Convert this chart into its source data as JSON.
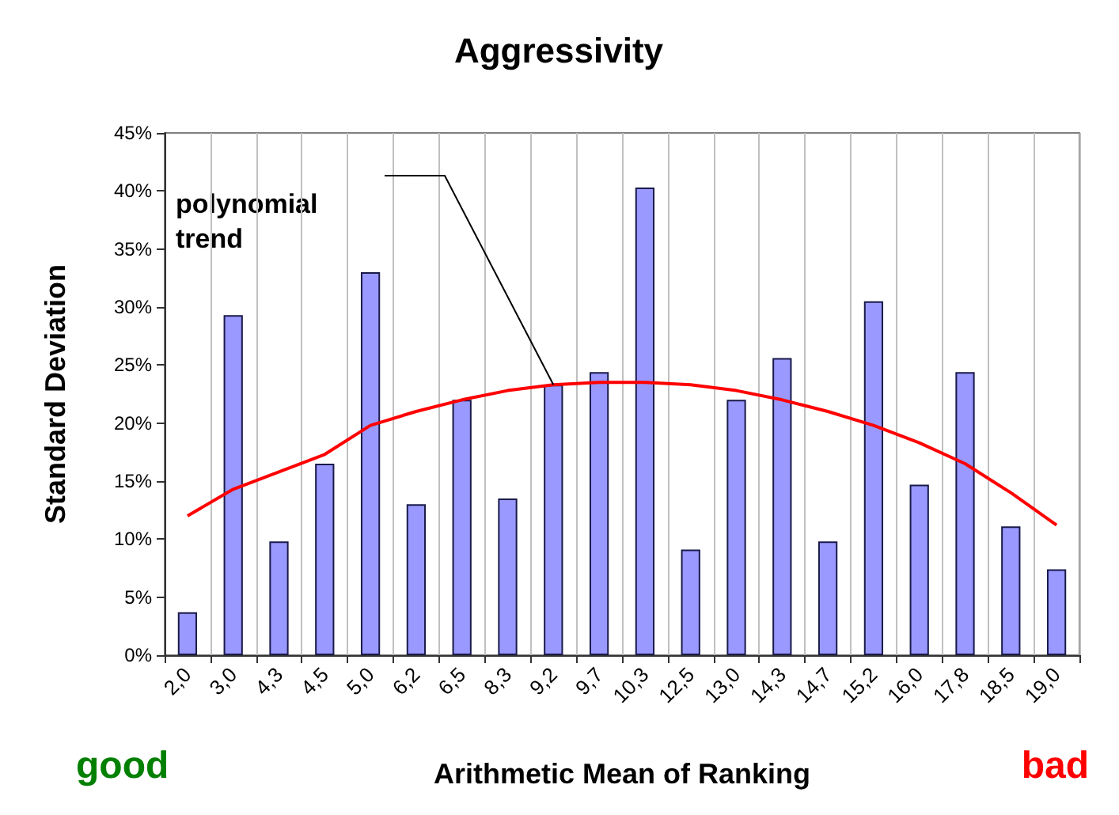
{
  "chart_data": {
    "type": "bar",
    "title": "Aggressivity",
    "xlabel": "Arithmetic Mean of Ranking",
    "ylabel": "Standard Deviation",
    "categories": [
      "2,0",
      "3,0",
      "4,3",
      "4,5",
      "5,0",
      "6,2",
      "6,5",
      "8,3",
      "9,2",
      "9,7",
      "10,3",
      "12,5",
      "13,0",
      "14,3",
      "14,7",
      "15,2",
      "16,0",
      "17,8",
      "18,5",
      "19,0"
    ],
    "series": [
      {
        "color": "#9999ff",
        "values": [
          3.7,
          29.3,
          9.8,
          16.5,
          33,
          13,
          22,
          13.5,
          23.3,
          24.4,
          40.3,
          9.1,
          22,
          25.6,
          9.8,
          30.5,
          14.7,
          24.4,
          11.1,
          7.4
        ]
      },
      {
        "type": "line",
        "color": "#ff0000",
        "values": [
          12,
          14.3,
          15.8,
          17.3,
          19.8,
          21,
          22,
          22.8,
          23.3,
          23.5,
          23.5,
          23.3,
          22.8,
          22,
          21,
          19.8,
          18.3,
          16.5,
          14,
          11.2
        ]
      }
    ],
    "ylim": [
      0,
      45
    ],
    "yticks": [
      {
        "value": 0,
        "label": "0%"
      },
      {
        "value": 5,
        "label": "5%"
      },
      {
        "value": 10,
        "label": "10%"
      },
      {
        "value": 15,
        "label": "15%"
      },
      {
        "value": 20,
        "label": "20%"
      },
      {
        "value": 25,
        "label": "25%"
      },
      {
        "value": 30,
        "label": "30%"
      },
      {
        "value": 35,
        "label": "35%"
      },
      {
        "value": 40,
        "label": "40%"
      },
      {
        "value": 45,
        "label": "45%"
      }
    ],
    "grid": "x",
    "marker": "none",
    "annotations": [
      "polynomial trend",
      "good",
      "bad"
    ]
  }
}
